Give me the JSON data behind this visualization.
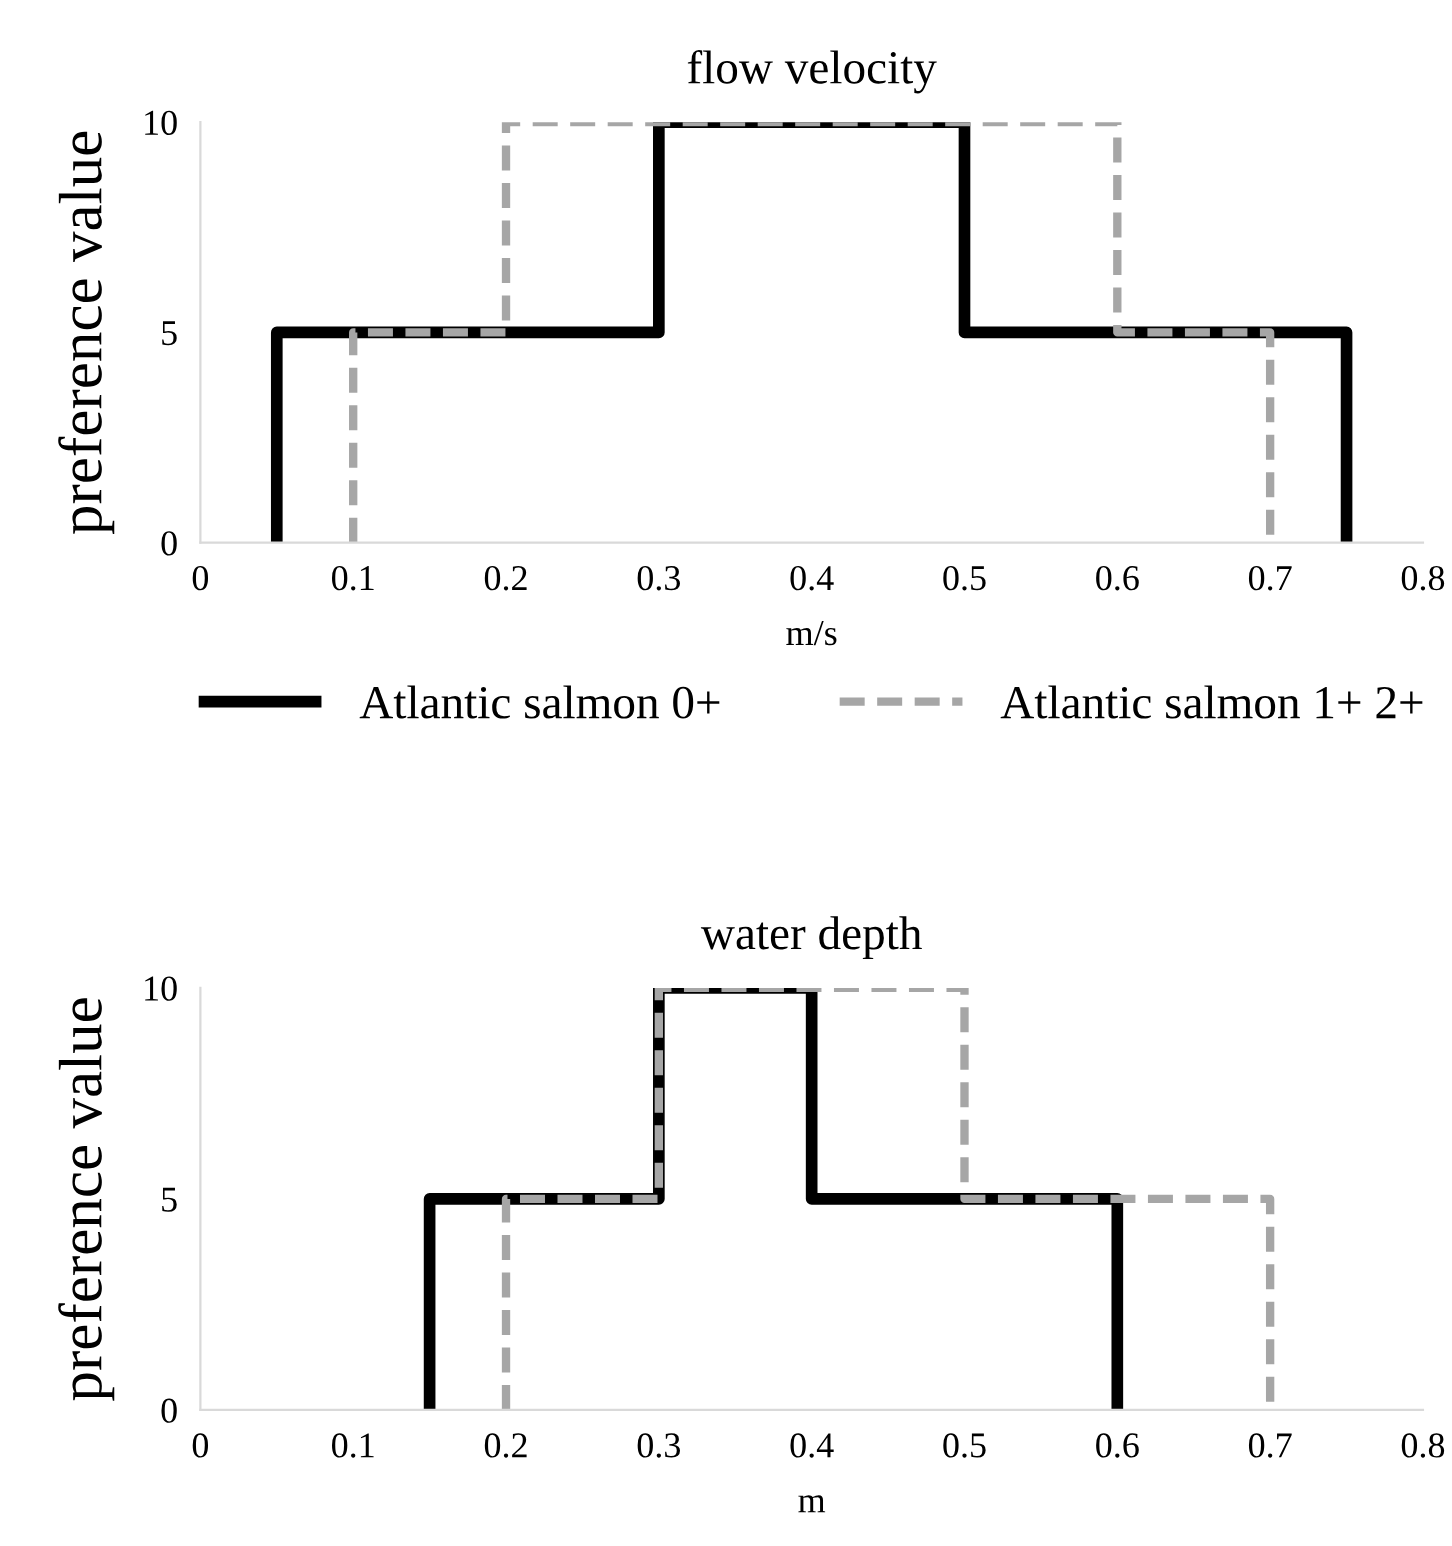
{
  "chart_data": [
    {
      "type": "line",
      "title": "flow velocity",
      "xlabel": "m/s",
      "ylabel": "preference value",
      "xlim": [
        0,
        0.8
      ],
      "xticks": [
        0,
        0.1,
        0.2,
        0.3,
        0.4,
        0.5,
        0.6,
        0.7,
        0.8
      ],
      "ylim": [
        0,
        10
      ],
      "yticks": [
        0,
        5,
        10
      ],
      "grid": false,
      "legend": "bottom",
      "series": [
        {
          "name": "Atlantic salmon 0+",
          "color": "#000000",
          "line_style": "solid",
          "x": [
            0.05,
            0.05,
            0.3,
            0.3,
            0.5,
            0.5,
            0.75,
            0.75
          ],
          "values": [
            0,
            5,
            5,
            10,
            10,
            5,
            5,
            0
          ]
        },
        {
          "name": "Atlantic salmon 1+ 2+",
          "color": "#a6a6a6",
          "line_style": "dashed",
          "x": [
            0.1,
            0.1,
            0.2,
            0.2,
            0.6,
            0.6,
            0.7,
            0.7
          ],
          "values": [
            0,
            5,
            5,
            10,
            10,
            5,
            5,
            0
          ]
        }
      ]
    },
    {
      "type": "line",
      "title": "water depth",
      "xlabel": "m",
      "ylabel": "preference value",
      "xlim": [
        0,
        0.8
      ],
      "xticks": [
        0,
        0.1,
        0.2,
        0.3,
        0.4,
        0.5,
        0.6,
        0.7,
        0.8
      ],
      "ylim": [
        0,
        10
      ],
      "yticks": [
        0,
        5,
        10
      ],
      "grid": false,
      "series": [
        {
          "color": "#000000",
          "line_style": "solid",
          "x": [
            0.15,
            0.15,
            0.3,
            0.3,
            0.4,
            0.4,
            0.6,
            0.6
          ],
          "values": [
            0,
            5,
            5,
            10,
            10,
            5,
            5,
            0
          ]
        },
        {
          "color": "#a6a6a6",
          "line_style": "dashed",
          "x": [
            0.2,
            0.2,
            0.3,
            0.3,
            0.5,
            0.5,
            0.7,
            0.7
          ],
          "values": [
            0,
            5,
            5,
            10,
            10,
            5,
            5,
            0
          ]
        }
      ]
    }
  ]
}
